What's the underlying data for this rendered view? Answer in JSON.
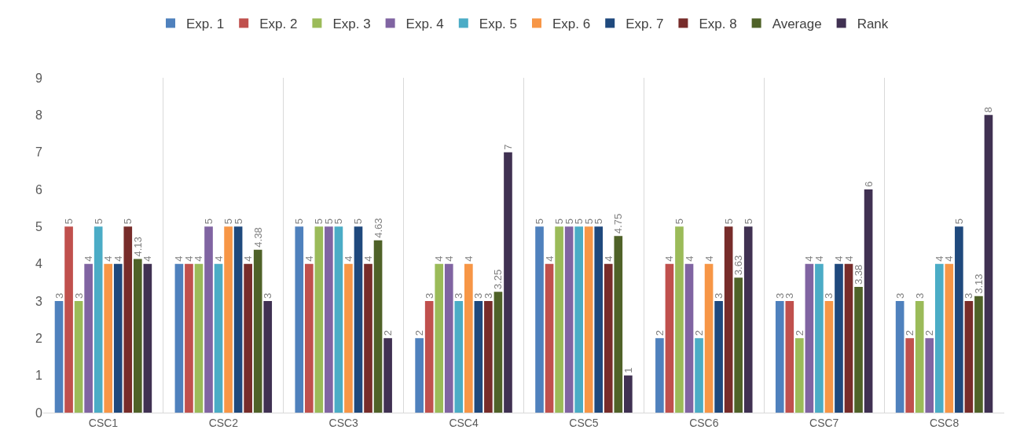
{
  "chart_data": {
    "type": "bar",
    "categories": [
      "CSC1",
      "CSC2",
      "CSC3",
      "CSC4",
      "CSC5",
      "CSC6",
      "CSC7",
      "CSC8"
    ],
    "series": [
      {
        "name": "Exp. 1",
        "color": "#4f81bd",
        "values": [
          3,
          4,
          5,
          2,
          5,
          2,
          3,
          3
        ]
      },
      {
        "name": "Exp. 2",
        "color": "#c0504d",
        "values": [
          5,
          4,
          4,
          3,
          4,
          4,
          3,
          2
        ]
      },
      {
        "name": "Exp. 3",
        "color": "#9bbb59",
        "values": [
          3,
          4,
          5,
          4,
          5,
          5,
          2,
          3
        ]
      },
      {
        "name": "Exp. 4",
        "color": "#8064a2",
        "values": [
          4,
          5,
          5,
          4,
          5,
          4,
          4,
          2
        ]
      },
      {
        "name": "Exp. 5",
        "color": "#4bacc6",
        "values": [
          5,
          4,
          5,
          3,
          5,
          2,
          4,
          4
        ]
      },
      {
        "name": "Exp. 6",
        "color": "#f79646",
        "values": [
          4,
          5,
          4,
          4,
          5,
          4,
          3,
          4
        ]
      },
      {
        "name": "Exp. 7",
        "color": "#1f497d",
        "values": [
          4,
          5,
          5,
          3,
          5,
          3,
          4,
          5
        ]
      },
      {
        "name": "Exp. 8",
        "color": "#772c2a",
        "values": [
          5,
          4,
          4,
          3,
          4,
          5,
          4,
          3
        ]
      },
      {
        "name": "Average",
        "color": "#4f6228",
        "values": [
          4.13,
          4.38,
          4.63,
          3.25,
          4.75,
          3.63,
          3.38,
          3.13
        ]
      },
      {
        "name": "Rank",
        "color": "#403152",
        "values": [
          4,
          3,
          2,
          7,
          1,
          5,
          6,
          8
        ]
      }
    ],
    "ylim": [
      0,
      9
    ],
    "yticks": [
      0,
      1,
      2,
      3,
      4,
      5,
      6,
      7,
      8,
      9
    ],
    "grid": "x",
    "legend": "top",
    "data_labels": true
  }
}
